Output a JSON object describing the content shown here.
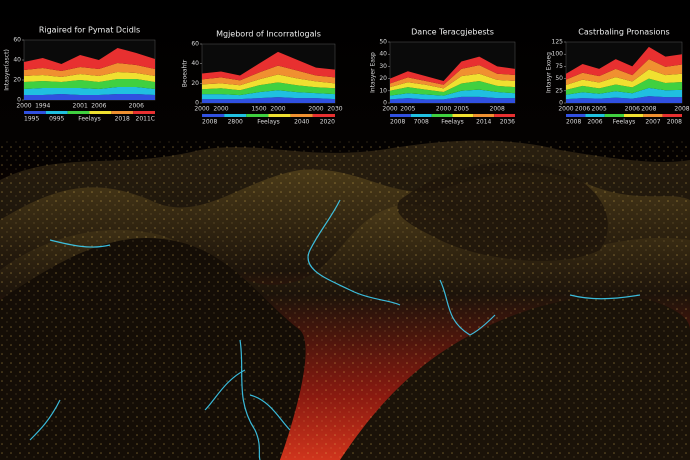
{
  "chart_data": [
    {
      "type": "area",
      "title": "Rigaired for Pymat Dcidls",
      "ylabel": "Intasyer(asct)",
      "xlabel": "Feelays",
      "bottom_labels": [
        "1995",
        "0995",
        "2018",
        "2011C"
      ],
      "categories": [
        "2000",
        "1994",
        null,
        "2001",
        "2006",
        null,
        "2006",
        null
      ],
      "ylim": [
        0,
        60
      ],
      "yticks": [
        0,
        20,
        40,
        60
      ],
      "series": [
        {
          "color": "#3050e0",
          "values": [
            5,
            5,
            6,
            5,
            5,
            6,
            6,
            5
          ]
        },
        {
          "color": "#20c0e0",
          "values": [
            6,
            7,
            6,
            7,
            6,
            7,
            7,
            6
          ]
        },
        {
          "color": "#40d040",
          "values": [
            7,
            7,
            6,
            8,
            7,
            8,
            8,
            7
          ]
        },
        {
          "color": "#f0e030",
          "values": [
            6,
            6,
            5,
            6,
            6,
            7,
            6,
            6
          ]
        },
        {
          "color": "#f09030",
          "values": [
            6,
            7,
            6,
            7,
            7,
            9,
            8,
            7
          ]
        },
        {
          "color": "#e83030",
          "values": [
            8,
            10,
            7,
            12,
            9,
            15,
            12,
            10
          ]
        }
      ]
    },
    {
      "type": "area",
      "title": "Mgjebord of Incorratlogals",
      "ylabel": "Beoeahtr",
      "xlabel": "Feelays",
      "bottom_labels": [
        "2008",
        "2800",
        "2040",
        "2020"
      ],
      "categories": [
        "2000",
        "2000",
        null,
        "1500",
        "2000",
        null,
        "2000",
        "2030"
      ],
      "ylim": [
        0,
        60
      ],
      "yticks": [
        0,
        20,
        40,
        60
      ],
      "series": [
        {
          "color": "#3050e0",
          "values": [
            4,
            4,
            4,
            5,
            6,
            5,
            5,
            4
          ]
        },
        {
          "color": "#20c0e0",
          "values": [
            5,
            5,
            4,
            6,
            7,
            6,
            5,
            5
          ]
        },
        {
          "color": "#40d040",
          "values": [
            5,
            6,
            5,
            7,
            8,
            7,
            6,
            6
          ]
        },
        {
          "color": "#f0e030",
          "values": [
            5,
            5,
            5,
            6,
            8,
            7,
            6,
            5
          ]
        },
        {
          "color": "#f09030",
          "values": [
            5,
            6,
            5,
            7,
            9,
            8,
            6,
            6
          ]
        },
        {
          "color": "#e83030",
          "values": [
            6,
            6,
            5,
            9,
            14,
            11,
            8,
            8
          ]
        }
      ]
    },
    {
      "type": "area",
      "title": "Dance Teracgjebests",
      "ylabel": "Intasyer Easp",
      "xlabel": "Feelays",
      "bottom_labels": [
        "2008",
        "7008",
        "2014",
        "2036"
      ],
      "categories": [
        "2000",
        "2005",
        null,
        "2000",
        "2005",
        null,
        "2008",
        null
      ],
      "ylim": [
        0,
        50
      ],
      "yticks": [
        0,
        10,
        20,
        30,
        40,
        50
      ],
      "series": [
        {
          "color": "#3050e0",
          "values": [
            3,
            4,
            3,
            3,
            5,
            5,
            4,
            4
          ]
        },
        {
          "color": "#20c0e0",
          "values": [
            3,
            4,
            4,
            3,
            5,
            6,
            5,
            4
          ]
        },
        {
          "color": "#40d040",
          "values": [
            4,
            5,
            4,
            3,
            6,
            7,
            5,
            5
          ]
        },
        {
          "color": "#f0e030",
          "values": [
            3,
            4,
            4,
            3,
            6,
            6,
            5,
            5
          ]
        },
        {
          "color": "#f09030",
          "values": [
            3,
            4,
            3,
            3,
            6,
            7,
            5,
            5
          ]
        },
        {
          "color": "#e83030",
          "values": [
            4,
            5,
            4,
            3,
            6,
            7,
            6,
            5
          ]
        }
      ]
    },
    {
      "type": "area",
      "title": "Castrbaling Pronasions",
      "ylabel": "Intasyr Exoeg",
      "xlabel": "Feelays",
      "bottom_labels": [
        "2008",
        "2006",
        "2007",
        "2008"
      ],
      "categories": [
        "2000",
        "2006",
        "2005",
        null,
        "2006",
        "2008",
        null,
        "2008"
      ],
      "ylim": [
        0,
        125
      ],
      "yticks": [
        0,
        25,
        50,
        75,
        100,
        125
      ],
      "series": [
        {
          "color": "#3050e0",
          "values": [
            8,
            10,
            9,
            11,
            9,
            14,
            12,
            12
          ]
        },
        {
          "color": "#20c0e0",
          "values": [
            9,
            12,
            10,
            13,
            11,
            17,
            14,
            15
          ]
        },
        {
          "color": "#40d040",
          "values": [
            10,
            13,
            11,
            14,
            12,
            19,
            15,
            16
          ]
        },
        {
          "color": "#f0e030",
          "values": [
            10,
            13,
            12,
            15,
            12,
            19,
            16,
            17
          ]
        },
        {
          "color": "#f09030",
          "values": [
            11,
            14,
            13,
            17,
            13,
            21,
            17,
            19
          ]
        },
        {
          "color": "#e83030",
          "values": [
            12,
            18,
            15,
            20,
            18,
            25,
            21,
            21
          ]
        }
      ]
    }
  ]
}
